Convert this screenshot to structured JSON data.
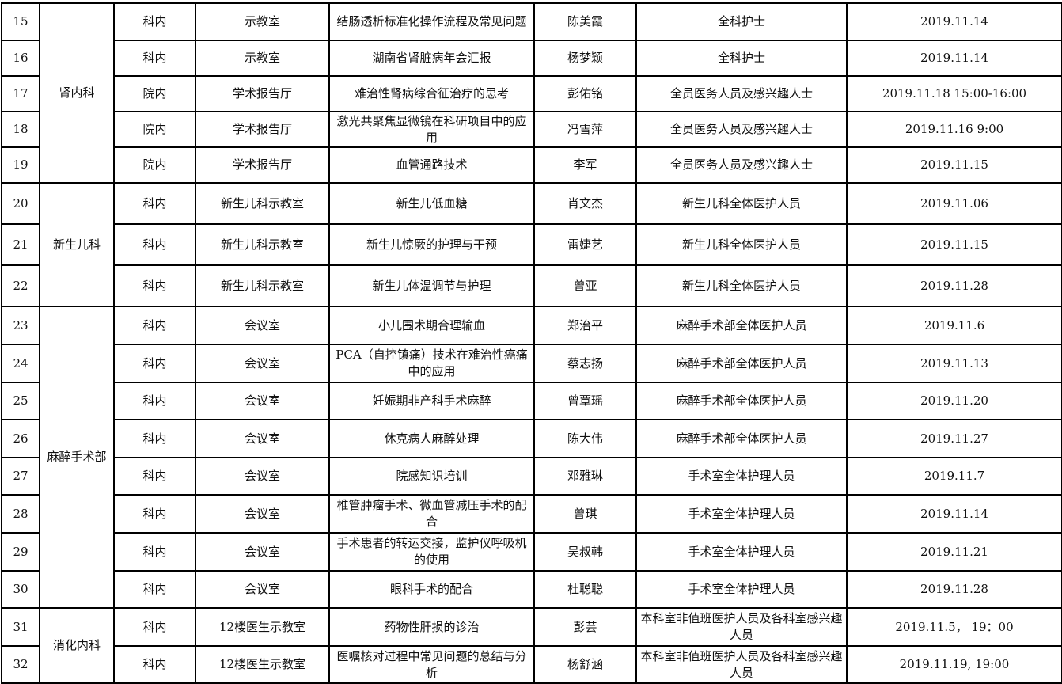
{
  "groups": [
    {
      "dept": "肾内科",
      "rows": [
        {
          "no": "15",
          "scope": "科内",
          "place": "示教室",
          "topic": "结肠透析标准化操作流程及常见问题",
          "speaker": "陈美霞",
          "audience": "全科护士",
          "time": "2019.11.14"
        },
        {
          "no": "16",
          "scope": "科内",
          "place": "示教室",
          "topic": "湖南省肾脏病年会汇报",
          "speaker": "杨梦颖",
          "audience": "全科护士",
          "time": "2019.11.14"
        },
        {
          "no": "17",
          "scope": "院内",
          "place": "学术报告厅",
          "topic": "难治性肾病综合征治疗的思考",
          "speaker": "彭佑铭",
          "audience": "全员医务人员及感兴趣人士",
          "time": "2019.11.18 15:00-16:00"
        },
        {
          "no": "18",
          "scope": "院内",
          "place": "学术报告厅",
          "topic": "激光共聚焦显微镜在科研项目中的应用",
          "speaker": "冯雪萍",
          "audience": "全员医务人员及感兴趣人士",
          "time": "2019.11.16 9:00"
        },
        {
          "no": "19",
          "scope": "院内",
          "place": "学术报告厅",
          "topic": "血管通路技术",
          "speaker": "李军",
          "audience": "全员医务人员及感兴趣人士",
          "time": "2019.11.15"
        }
      ]
    },
    {
      "dept": "新生儿科",
      "rows": [
        {
          "no": "20",
          "scope": "科内",
          "place": "新生儿科示教室",
          "topic": "新生儿低血糖",
          "speaker": "肖文杰",
          "audience": "新生儿科全体医护人员",
          "time": "2019.11.06"
        },
        {
          "no": "21",
          "scope": "科内",
          "place": "新生儿科示教室",
          "topic": "新生儿惊厥的护理与干预",
          "speaker": "雷婕艺",
          "audience": "新生儿科全体医护人员",
          "time": "2019.11.15"
        },
        {
          "no": "22",
          "scope": "科内",
          "place": "新生儿科示教室",
          "topic": "新生儿体温调节与护理",
          "speaker": "曾亚",
          "audience": "新生儿科全体医护人员",
          "time": "2019.11.28"
        }
      ]
    },
    {
      "dept": "麻醉手术部",
      "rows": [
        {
          "no": "23",
          "scope": "科内",
          "place": "会议室",
          "topic": "小儿围术期合理输血",
          "speaker": "郑治平",
          "audience": "麻醉手术部全体医护人员",
          "time": "2019.11.6"
        },
        {
          "no": "24",
          "scope": "科内",
          "place": "会议室",
          "topic": "PCA（自控镇痛）技术在难治性癌痛中的应用",
          "speaker": "蔡志扬",
          "audience": "麻醉手术部全体医护人员",
          "time": "2019.11.13"
        },
        {
          "no": "25",
          "scope": "科内",
          "place": "会议室",
          "topic": "妊娠期非产科手术麻醉",
          "speaker": "曾覃瑶",
          "audience": "麻醉手术部全体医护人员",
          "time": "2019.11.20"
        },
        {
          "no": "26",
          "scope": "科内",
          "place": "会议室",
          "topic": "休克病人麻醉处理",
          "speaker": "陈大伟",
          "audience": "麻醉手术部全体医护人员",
          "time": "2019.11.27"
        },
        {
          "no": "27",
          "scope": "科内",
          "place": "会议室",
          "topic": "院感知识培训",
          "speaker": "邓雅琳",
          "audience": "手术室全体护理人员",
          "time": "2019.11.7"
        },
        {
          "no": "28",
          "scope": "科内",
          "place": "会议室",
          "topic": "椎管肿瘤手术、微血管减压手术的配合",
          "speaker": "曾琪",
          "audience": "手术室全体护理人员",
          "time": "2019.11.14"
        },
        {
          "no": "29",
          "scope": "科内",
          "place": "会议室",
          "topic": "手术患者的转运交接，监护仪呼吸机的使用",
          "speaker": "吴叔韩",
          "audience": "手术室全体护理人员",
          "time": "2019.11.21"
        },
        {
          "no": "30",
          "scope": "科内",
          "place": "会议室",
          "topic": "眼科手术的配合",
          "speaker": "杜聪聪",
          "audience": "手术室全体护理人员",
          "time": "2019.11.28"
        }
      ]
    },
    {
      "dept": "消化内科",
      "rows": [
        {
          "no": "31",
          "scope": "科内",
          "place": "12楼医生示教室",
          "topic": "药物性肝损的诊治",
          "speaker": "彭芸",
          "audience": "本科室非值班医护人员及各科室感兴趣人员",
          "time": "2019.11.5， 19：00"
        },
        {
          "no": "32",
          "scope": "科内",
          "place": "12楼医生示教室",
          "topic": "医嘱核对过程中常见问题的总结与分析",
          "speaker": "杨舒涵",
          "audience": "本科室非值班医护人员及各科室感兴趣人员",
          "time": "2019.11.19, 19:00"
        }
      ]
    }
  ]
}
